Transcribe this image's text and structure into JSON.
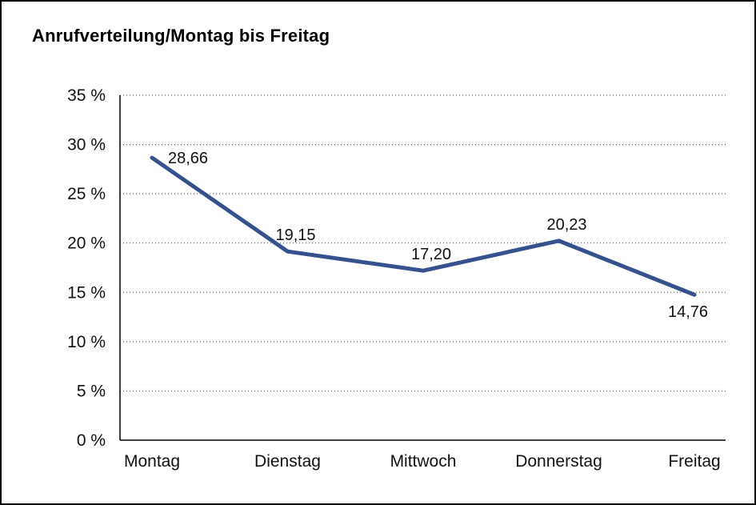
{
  "title": "Anrufverteilung/Montag bis Freitag",
  "chart_data": {
    "type": "line",
    "title": "Anrufverteilung/Montag bis Freitag",
    "categories": [
      "Montag",
      "Dienstag",
      "Mittwoch",
      "Donnerstag",
      "Freitag"
    ],
    "values": [
      28.66,
      19.15,
      17.2,
      20.23,
      14.76
    ],
    "value_labels": [
      "28,66",
      "19,15",
      "17,20",
      "20,23",
      "14,76"
    ],
    "label_positions": [
      "right",
      "above",
      "above",
      "above",
      "below"
    ],
    "ytick_labels": [
      "0 %",
      "5 %",
      "10 %",
      "15 %",
      "20 %",
      "25 %",
      "30 %",
      "35 %"
    ],
    "ylim": [
      0,
      35
    ],
    "ytick_step": 5,
    "grid": "horizontal-dotted",
    "legend": "none",
    "line_color": "#35518E"
  }
}
